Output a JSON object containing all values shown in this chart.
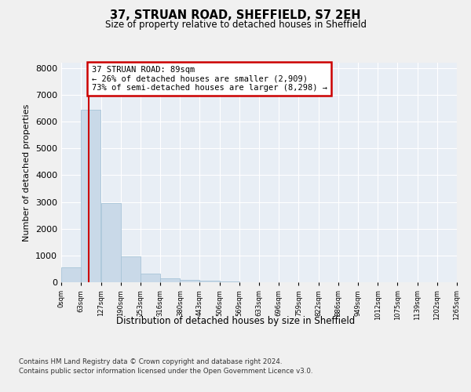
{
  "title": "37, STRUAN ROAD, SHEFFIELD, S7 2EH",
  "subtitle": "Size of property relative to detached houses in Sheffield",
  "xlabel": "Distribution of detached houses by size in Sheffield",
  "ylabel": "Number of detached properties",
  "bar_color": "#c9d9e8",
  "bar_edge_color": "#a8c4d8",
  "background_color": "#e8eef5",
  "grid_color": "#ffffff",
  "fig_bg_color": "#f0f0f0",
  "bin_edges": [
    0,
    63,
    127,
    190,
    253,
    316,
    380,
    443,
    506,
    569,
    633,
    696,
    759,
    822,
    886,
    949,
    1012,
    1075,
    1139,
    1202,
    1265
  ],
  "bar_heights": [
    550,
    6450,
    2950,
    975,
    325,
    150,
    100,
    60,
    15,
    5,
    3,
    2,
    1,
    0,
    0,
    0,
    0,
    0,
    0,
    0
  ],
  "tick_labels": [
    "0sqm",
    "63sqm",
    "127sqm",
    "190sqm",
    "253sqm",
    "316sqm",
    "380sqm",
    "443sqm",
    "506sqm",
    "569sqm",
    "633sqm",
    "696sqm",
    "759sqm",
    "822sqm",
    "886sqm",
    "949sqm",
    "1012sqm",
    "1075sqm",
    "1139sqm",
    "1202sqm",
    "1265sqm"
  ],
  "property_size": 89,
  "vline_color": "#cc0000",
  "annotation_line1": "37 STRUAN ROAD: 89sqm",
  "annotation_line2": "← 26% of detached houses are smaller (2,909)",
  "annotation_line3": "73% of semi-detached houses are larger (8,298) →",
  "annotation_box_color": "#ffffff",
  "annotation_border_color": "#cc0000",
  "ylim": [
    0,
    8200
  ],
  "yticks": [
    0,
    1000,
    2000,
    3000,
    4000,
    5000,
    6000,
    7000,
    8000
  ],
  "footer_line1": "Contains HM Land Registry data © Crown copyright and database right 2024.",
  "footer_line2": "Contains public sector information licensed under the Open Government Licence v3.0."
}
